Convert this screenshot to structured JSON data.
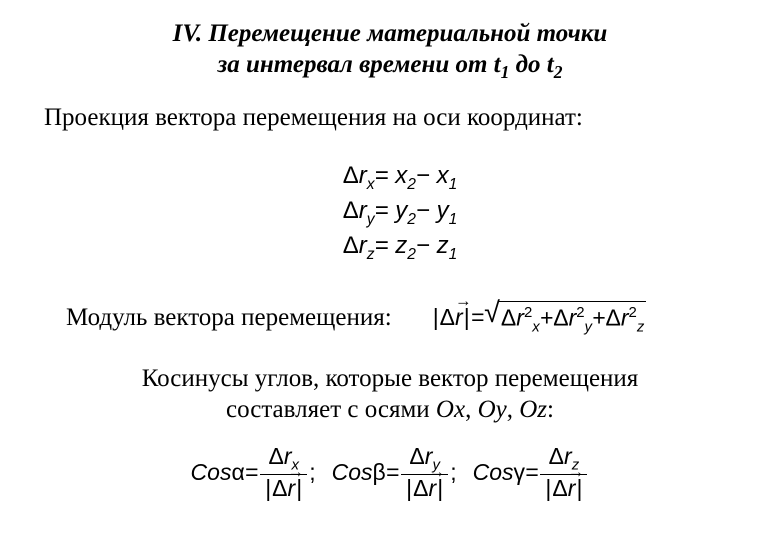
{
  "colors": {
    "bg": "#ffffff",
    "fg": "#000000"
  },
  "heading": {
    "line1": "IV. Перемещение материальной точки",
    "line2_a": "за интервал времени от t",
    "line2_sub1": "1",
    "line2_b": " до t",
    "line2_sub2": "2"
  },
  "projection_label": "Проекция вектора перемещения на оси координат:",
  "eq": {
    "rx": {
      "lhs_sub": "x",
      "r1_sub": "2",
      "r2_sub": "1",
      "var": "x"
    },
    "ry": {
      "lhs_sub": "y",
      "r1_sub": "2",
      "r2_sub": "1",
      "var": "y"
    },
    "rz": {
      "lhs_sub": "z",
      "r1_sub": "2",
      "r2_sub": "1",
      "var": "z"
    }
  },
  "delta": "Δ",
  "rletter": "r",
  "equals": "=",
  "minus": "−",
  "plus": "+",
  "modulus": {
    "label": "Модуль вектора перемещения:",
    "terms": [
      {
        "sub": "x"
      },
      {
        "sub": "y"
      },
      {
        "sub": "z"
      }
    ],
    "exp": "2"
  },
  "cosines": {
    "line1": "Косинусы углов, которые вектор перемещения",
    "line2_a": "составляет с осями ",
    "ax1": "Ox",
    "sep": ", ",
    "ax2": "Oy",
    "ax3": "Oz",
    "colon": ":",
    "coslabel": "Cos",
    "items": [
      {
        "angle": "α",
        "sub": "x"
      },
      {
        "angle": "β",
        "sub": "y"
      },
      {
        "angle": "γ",
        "sub": "z"
      }
    ],
    "semi": ";"
  }
}
